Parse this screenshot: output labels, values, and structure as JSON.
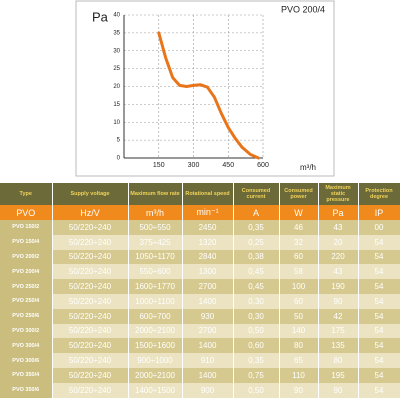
{
  "chart_data": {
    "type": "line",
    "title": "PVO 200/4",
    "y_label": "Pa",
    "x_label": "m³/h",
    "x": [
      150,
      180,
      210,
      240,
      270,
      300,
      330,
      360,
      390,
      420,
      450,
      480,
      510,
      545,
      580
    ],
    "series": [
      {
        "name": "PVO 200/4",
        "color": "#e8751a",
        "values": [
          35,
          28,
          22.5,
          20.3,
          20,
          20.3,
          20.5,
          19.8,
          17,
          12.5,
          8.5,
          5.5,
          3,
          1,
          0
        ]
      }
    ],
    "xlim": [
      0,
      600
    ],
    "xticks": [
      150,
      300,
      450,
      600
    ],
    "ylim": [
      0,
      40
    ],
    "yticks": [
      0,
      5,
      10,
      15,
      20,
      25,
      30,
      35,
      40
    ],
    "grid": true
  },
  "table": {
    "header": [
      "Type",
      "Supply voltage",
      "Maximum flow rate",
      "Rotational speed",
      "Consumed current",
      "Consumed power",
      "Maximum static pressure",
      "Protection degree"
    ],
    "units": [
      "PVO",
      "Hz/V",
      "m³/h",
      "min⁻¹",
      "A",
      "W",
      "Pa",
      "IP"
    ],
    "rows": [
      [
        "PVO 150/2",
        "50/220÷240",
        "500÷550",
        "2450",
        "0,35",
        "46",
        "43",
        "00"
      ],
      [
        "PVO 150/4",
        "50/220÷240",
        "375÷425",
        "1320",
        "0,25",
        "32",
        "20",
        "54"
      ],
      [
        "PVO 200/2",
        "50/220÷240",
        "1050÷1170",
        "2840",
        "0,38",
        "60",
        "220",
        "54"
      ],
      [
        "PVO 200/4",
        "50/220÷240",
        "550÷600",
        "1300",
        "0,45",
        "58",
        "43",
        "54"
      ],
      [
        "PVO 250/2",
        "50/220÷240",
        "1600÷1770",
        "2700",
        "0,45",
        "100",
        "190",
        "54"
      ],
      [
        "PVO 250/4",
        "50/220÷240",
        "1000÷1100",
        "1400",
        "0,30",
        "60",
        "90",
        "54"
      ],
      [
        "PVO 250/6",
        "50/220÷240",
        "600÷700",
        "930",
        "0,30",
        "50",
        "42",
        "54"
      ],
      [
        "PVO 300/2",
        "50/220÷240",
        "2000÷2100",
        "2700",
        "0,50",
        "140",
        "175",
        "54"
      ],
      [
        "PVO 300/4",
        "50/220÷240",
        "1500÷1600",
        "1400",
        "0,60",
        "80",
        "135",
        "54"
      ],
      [
        "PVO 300/6",
        "50/220÷240",
        "900÷1000",
        "910",
        "0,35",
        "65",
        "80",
        "54"
      ],
      [
        "PVO 350/4",
        "50/220÷240",
        "2000÷2100",
        "1400",
        "0,75",
        "110",
        "195",
        "54"
      ],
      [
        "PVO 350/6",
        "50/220÷240",
        "1400÷1500",
        "900",
        "0,50",
        "90",
        "90",
        "54"
      ]
    ]
  }
}
